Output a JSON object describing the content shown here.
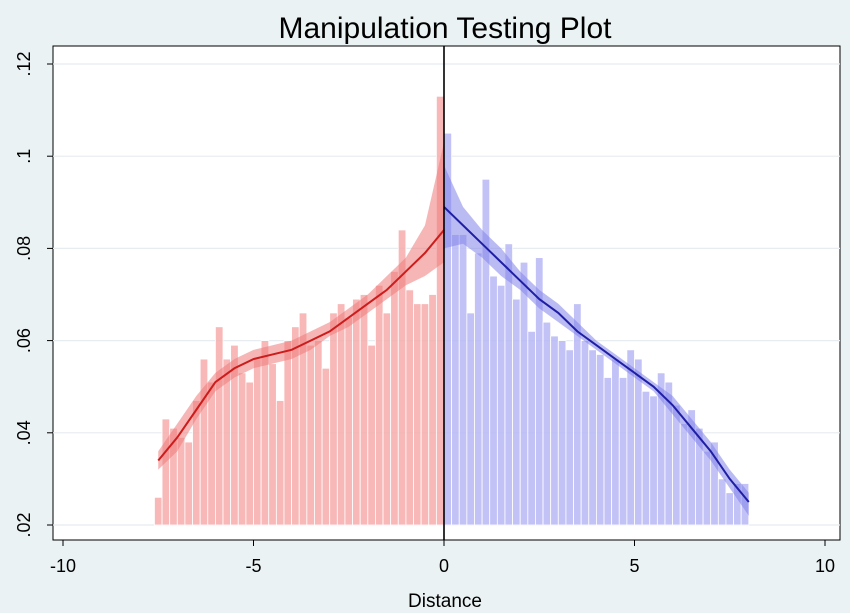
{
  "chart_data": {
    "type": "bar",
    "title": "Manipulation Testing Plot",
    "xlabel": "Distance",
    "ylabel": "",
    "xlim": [
      -10,
      10
    ],
    "ylim": [
      0.02,
      0.122
    ],
    "x_ticks": [
      -10,
      -5,
      0,
      5,
      10
    ],
    "x_tick_labels": [
      "-10",
      "-5",
      "0",
      "5",
      "10"
    ],
    "y_ticks": [
      0.02,
      0.04,
      0.06,
      0.08,
      0.1,
      0.12
    ],
    "y_tick_labels": [
      ".02",
      ".04",
      ".06",
      ".08",
      ".1",
      ".12"
    ],
    "grid": true,
    "cutoff": 0,
    "colors": {
      "background": "#eaf2f3",
      "plot_area": "#ffffff",
      "grid": "#e6ecef",
      "left_fill": "#f7a8a8",
      "left_band": "#ef7a7a",
      "left_line": "#cc1c1c",
      "right_fill": "#b4b4f5",
      "right_band": "#8383ea",
      "right_line": "#1f1fa6",
      "cutoff_line": "#000000"
    },
    "series": [
      {
        "side": "left",
        "histogram": {
          "bin_width": 0.2,
          "bin_starts": [
            -7.6,
            -7.4,
            -7.2,
            -7.0,
            -6.8,
            -6.6,
            -6.4,
            -6.2,
            -6.0,
            -5.8,
            -5.6,
            -5.4,
            -5.2,
            -5.0,
            -4.8,
            -4.6,
            -4.4,
            -4.2,
            -4.0,
            -3.8,
            -3.6,
            -3.4,
            -3.2,
            -3.0,
            -2.8,
            -2.6,
            -2.4,
            -2.2,
            -2.0,
            -1.8,
            -1.6,
            -1.4,
            -1.2,
            -1.0,
            -0.8,
            -0.6,
            -0.4,
            -0.2
          ],
          "values": [
            0.026,
            0.043,
            0.041,
            0.039,
            0.038,
            0.047,
            0.056,
            0.051,
            0.063,
            0.056,
            0.059,
            0.053,
            0.051,
            0.056,
            0.06,
            0.055,
            0.047,
            0.06,
            0.063,
            0.066,
            0.059,
            0.06,
            0.054,
            0.066,
            0.068,
            0.065,
            0.069,
            0.07,
            0.059,
            0.072,
            0.066,
            0.075,
            0.084,
            0.071,
            0.068,
            0.068,
            0.07,
            0.113
          ]
        },
        "fit": {
          "x": [
            -7.5,
            -7.0,
            -6.5,
            -6.0,
            -5.5,
            -5.0,
            -4.5,
            -4.0,
            -3.5,
            -3.0,
            -2.5,
            -2.0,
            -1.5,
            -1.0,
            -0.5,
            0.0
          ],
          "y": [
            0.034,
            0.039,
            0.045,
            0.051,
            0.054,
            0.056,
            0.057,
            0.058,
            0.06,
            0.062,
            0.065,
            0.068,
            0.071,
            0.075,
            0.079,
            0.084
          ],
          "ci_low": [
            0.032,
            0.036,
            0.043,
            0.049,
            0.052,
            0.054,
            0.055,
            0.056,
            0.058,
            0.061,
            0.063,
            0.066,
            0.069,
            0.072,
            0.074,
            0.077
          ],
          "ci_high": [
            0.036,
            0.042,
            0.048,
            0.053,
            0.056,
            0.058,
            0.059,
            0.06,
            0.062,
            0.064,
            0.067,
            0.07,
            0.074,
            0.078,
            0.085,
            0.103
          ]
        }
      },
      {
        "side": "right",
        "histogram": {
          "bin_width": 0.2,
          "bin_starts": [
            0.0,
            0.2,
            0.4,
            0.6,
            0.8,
            1.0,
            1.2,
            1.4,
            1.6,
            1.8,
            2.0,
            2.2,
            2.4,
            2.6,
            2.8,
            3.0,
            3.2,
            3.4,
            3.6,
            3.8,
            4.0,
            4.2,
            4.4,
            4.6,
            4.8,
            5.0,
            5.2,
            5.4,
            5.6,
            5.8,
            6.0,
            6.2,
            6.4,
            6.6,
            6.8,
            7.0,
            7.2,
            7.4,
            7.6,
            7.8
          ],
          "values": [
            0.105,
            0.083,
            0.083,
            0.066,
            0.079,
            0.095,
            0.074,
            0.072,
            0.081,
            0.069,
            0.077,
            0.062,
            0.078,
            0.064,
            0.061,
            0.06,
            0.058,
            0.068,
            0.06,
            0.058,
            0.057,
            0.052,
            0.056,
            0.052,
            0.058,
            0.056,
            0.049,
            0.048,
            0.053,
            0.051,
            0.046,
            0.042,
            0.045,
            0.041,
            0.036,
            0.038,
            0.03,
            0.027,
            0.029,
            0.029
          ]
        },
        "fit": {
          "x": [
            0.0,
            0.5,
            1.0,
            1.5,
            2.0,
            2.5,
            3.0,
            3.5,
            4.0,
            4.5,
            5.0,
            5.5,
            6.0,
            6.5,
            7.0,
            7.5,
            8.0
          ],
          "y": [
            0.089,
            0.085,
            0.081,
            0.077,
            0.073,
            0.069,
            0.066,
            0.062,
            0.059,
            0.056,
            0.053,
            0.05,
            0.046,
            0.041,
            0.036,
            0.03,
            0.025
          ],
          "ci_low": [
            0.08,
            0.081,
            0.078,
            0.074,
            0.071,
            0.067,
            0.064,
            0.061,
            0.058,
            0.055,
            0.052,
            0.049,
            0.044,
            0.039,
            0.034,
            0.028,
            0.022
          ],
          "ci_high": [
            0.098,
            0.089,
            0.084,
            0.08,
            0.075,
            0.071,
            0.068,
            0.064,
            0.06,
            0.057,
            0.054,
            0.051,
            0.048,
            0.043,
            0.038,
            0.032,
            0.027
          ]
        }
      }
    ]
  }
}
